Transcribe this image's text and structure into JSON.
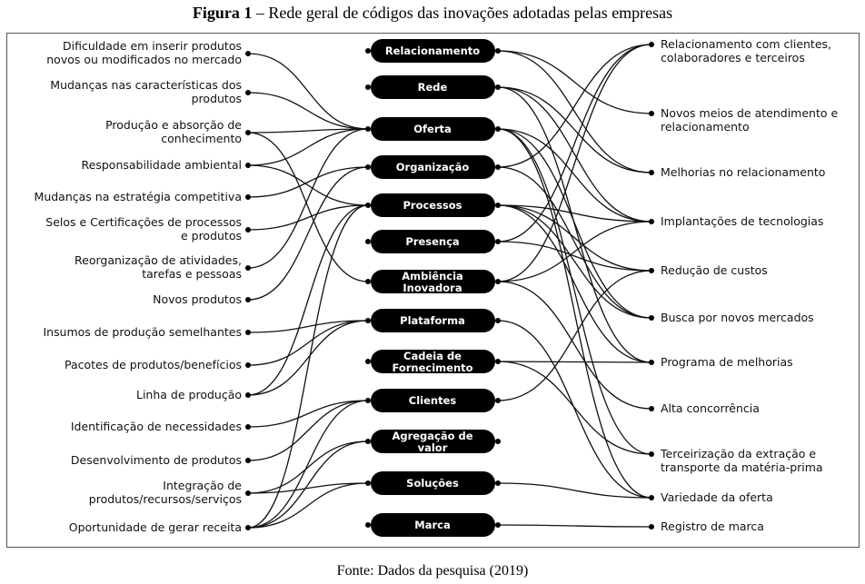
{
  "title": {
    "label": "Figura 1",
    "text": " – Rede geral de códigos das inovações adotadas pelas empresas"
  },
  "source": "Fonte: Dados da pesquisa (2019)",
  "left_nodes": [
    [
      "Dificuldade em inserir produtos",
      "novos ou modificados no mercado"
    ],
    [
      "Mudanças nas características dos",
      "produtos"
    ],
    [
      "Produção e absorção de",
      "conhecimento"
    ],
    [
      "Responsabilidade ambiental"
    ],
    [
      "Mudanças na estratégia competitiva"
    ],
    [
      "Selos e Certificações de processos",
      "e produtos"
    ],
    [
      "Reorganização de atividades,",
      "tarefas e pessoas"
    ],
    [
      "Novos produtos"
    ],
    [
      "Insumos de produção semelhantes"
    ],
    [
      "Pacotes de produtos/benefícios"
    ],
    [
      "Linha de produção"
    ],
    [
      "Identificação de necessidades"
    ],
    [
      "Desenvolvimento de produtos"
    ],
    [
      "Integração de",
      "produtos/recursos/serviços"
    ],
    [
      "Oportunidade de gerar receita"
    ]
  ],
  "center_nodes": [
    [
      "Relacionamento"
    ],
    [
      "Rede"
    ],
    [
      "Oferta"
    ],
    [
      "Organização"
    ],
    [
      "Processos"
    ],
    [
      "Presença"
    ],
    [
      "Ambiência",
      "Inovadora"
    ],
    [
      "Plataforma"
    ],
    [
      "Cadeia de",
      "Fornecimento"
    ],
    [
      "Clientes"
    ],
    [
      "Agregação de",
      "valor"
    ],
    [
      "Soluções"
    ],
    [
      "Marca"
    ]
  ],
  "right_nodes": [
    [
      "Relacionamento com clientes,",
      "colaboradores e terceiros"
    ],
    [
      "Novos meios de atendimento e",
      "relacionamento"
    ],
    [
      "Melhorias no relacionamento"
    ],
    [
      "Implantações de tecnologias"
    ],
    [
      "Redução de custos"
    ],
    [
      "Busca por novos mercados"
    ],
    [
      "Programa de melhorias"
    ],
    [
      "Alta concorrência"
    ],
    [
      "Terceirização da extração e",
      "transporte da matéria-prima"
    ],
    [
      "Variedade da oferta"
    ],
    [
      "Registro de marca"
    ]
  ],
  "left_edges": [
    [
      0,
      2
    ],
    [
      1,
      2
    ],
    [
      2,
      2
    ],
    [
      2,
      6
    ],
    [
      3,
      2
    ],
    [
      3,
      4
    ],
    [
      4,
      3
    ],
    [
      5,
      4
    ],
    [
      6,
      2
    ],
    [
      7,
      3
    ],
    [
      8,
      7
    ],
    [
      9,
      7
    ],
    [
      10,
      7
    ],
    [
      10,
      4
    ],
    [
      11,
      9
    ],
    [
      12,
      9
    ],
    [
      13,
      10
    ],
    [
      13,
      11
    ],
    [
      14,
      10
    ],
    [
      14,
      11
    ],
    [
      14,
      9
    ],
    [
      14,
      4
    ]
  ],
  "right_edges": [
    [
      0,
      1
    ],
    [
      0,
      2
    ],
    [
      1,
      2
    ],
    [
      1,
      3
    ],
    [
      1,
      6
    ],
    [
      2,
      3
    ],
    [
      2,
      8
    ],
    [
      2,
      9
    ],
    [
      2,
      5
    ],
    [
      3,
      0
    ],
    [
      3,
      5
    ],
    [
      4,
      3
    ],
    [
      4,
      4
    ],
    [
      4,
      5
    ],
    [
      4,
      6
    ],
    [
      5,
      0
    ],
    [
      5,
      4
    ],
    [
      6,
      0
    ],
    [
      6,
      3
    ],
    [
      6,
      7
    ],
    [
      7,
      9
    ],
    [
      8,
      8
    ],
    [
      8,
      6
    ],
    [
      9,
      4
    ],
    [
      11,
      9
    ],
    [
      12,
      10
    ]
  ],
  "colors": {
    "pill": "#000000",
    "line": "#111111"
  }
}
